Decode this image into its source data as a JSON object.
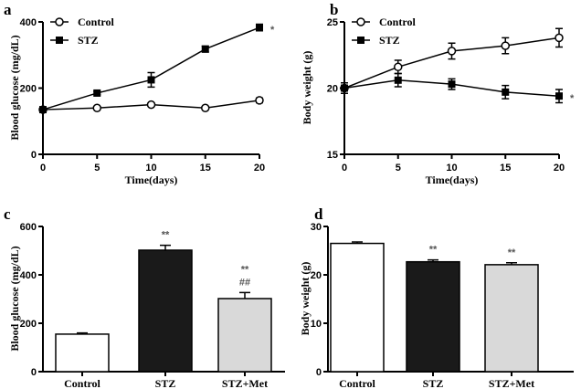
{
  "chart_data": [
    {
      "panel": "a",
      "type": "line",
      "xlabel": "Time(days)",
      "ylabel": "Blood glucose (mg/dL)",
      "x": [
        0,
        5,
        10,
        15,
        20
      ],
      "xticks": [
        "0",
        "5",
        "10",
        "15",
        "20"
      ],
      "ylim": [
        0,
        400
      ],
      "yticks": [
        "0",
        "200",
        "400"
      ],
      "series": [
        {
          "name": "Control",
          "marker": "open-circle",
          "values": [
            135,
            140,
            150,
            140,
            163
          ],
          "err": [
            5,
            4,
            5,
            4,
            7
          ]
        },
        {
          "name": "STZ",
          "marker": "filled-square",
          "values": [
            135,
            185,
            225,
            318,
            383
          ],
          "err": [
            5,
            5,
            22,
            9,
            10
          ]
        }
      ],
      "annotations": [
        "*"
      ],
      "legend": "top-left"
    },
    {
      "panel": "b",
      "type": "line",
      "xlabel": "Time(days)",
      "ylabel": "Body weight (g)",
      "x": [
        0,
        5,
        10,
        15,
        20
      ],
      "xticks": [
        "0",
        "5",
        "10",
        "15",
        "20"
      ],
      "ylim": [
        15,
        25
      ],
      "yticks": [
        "15",
        "20",
        "25"
      ],
      "series": [
        {
          "name": "Control",
          "marker": "open-circle",
          "values": [
            20,
            21.6,
            22.8,
            23.2,
            23.8
          ],
          "err": [
            0.4,
            0.5,
            0.6,
            0.6,
            0.7
          ]
        },
        {
          "name": "STZ",
          "marker": "filled-square",
          "values": [
            20,
            20.6,
            20.3,
            19.7,
            19.4
          ],
          "err": [
            0.4,
            0.5,
            0.4,
            0.5,
            0.5
          ]
        }
      ],
      "annotations": [
        "*"
      ],
      "legend": "top-left"
    },
    {
      "panel": "c",
      "type": "bar",
      "ylabel": "Blood glucose (mg/dL)",
      "categories": [
        "Control",
        "STZ",
        "STZ+Met"
      ],
      "values": [
        155,
        502,
        302
      ],
      "err": [
        5,
        20,
        25
      ],
      "ylim": [
        0,
        600
      ],
      "yticks": [
        "0",
        "200",
        "400",
        "600"
      ],
      "colors": [
        "#ffffff",
        "#1a1a1a",
        "#d9d9d9"
      ],
      "bar_annotations": [
        [
          "",
          ""
        ],
        [
          "**",
          ""
        ],
        [
          "**",
          "##"
        ]
      ]
    },
    {
      "panel": "d",
      "type": "bar",
      "ylabel": "Body weight (g)",
      "categories": [
        "Control",
        "STZ",
        "STZ+Met"
      ],
      "values": [
        26.5,
        22.7,
        22.1
      ],
      "err": [
        0.3,
        0.4,
        0.4
      ],
      "ylim": [
        0,
        30
      ],
      "yticks": [
        "0",
        "10",
        "20",
        "30"
      ],
      "colors": [
        "#ffffff",
        "#1a1a1a",
        "#d9d9d9"
      ],
      "bar_annotations": [
        [
          "",
          ""
        ],
        [
          "**",
          ""
        ],
        [
          "**",
          ""
        ]
      ]
    }
  ]
}
